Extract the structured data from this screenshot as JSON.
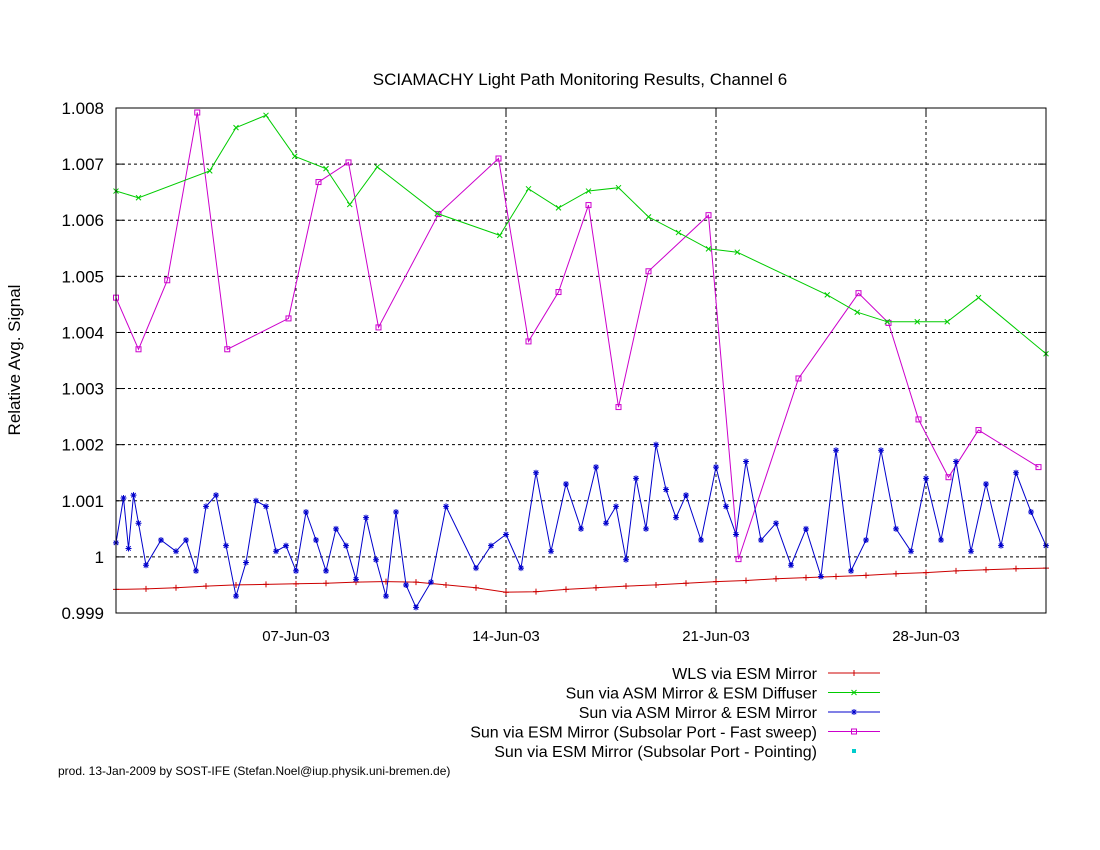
{
  "chart_data": {
    "type": "line",
    "title": "SCIAMACHY Light Path Monitoring Results, Channel 6",
    "ylabel": "Relative Avg. Signal",
    "xlabel": "",
    "xlim": [
      "2003-06-01",
      "2003-07-02"
    ],
    "ylim": [
      0.999,
      1.008
    ],
    "yticks": [
      {
        "value": 0.999,
        "label": "0.999"
      },
      {
        "value": 1.0,
        "label": "1"
      },
      {
        "value": 1.001,
        "label": "1.001"
      },
      {
        "value": 1.002,
        "label": "1.002"
      },
      {
        "value": 1.003,
        "label": "1.003"
      },
      {
        "value": 1.004,
        "label": "1.004"
      },
      {
        "value": 1.005,
        "label": "1.005"
      },
      {
        "value": 1.006,
        "label": "1.006"
      },
      {
        "value": 1.007,
        "label": "1.007"
      },
      {
        "value": 1.008,
        "label": "1.008"
      }
    ],
    "xticks": [
      {
        "value": "2003-06-07",
        "label": "07-Jun-03"
      },
      {
        "value": "2003-06-14",
        "label": "14-Jun-03"
      },
      {
        "value": "2003-06-21",
        "label": "21-Jun-03"
      },
      {
        "value": "2003-06-28",
        "label": "28-Jun-03"
      }
    ],
    "grid": true,
    "legend_position": "bottom-right",
    "series": [
      {
        "name": "WLS via ESM Mirror",
        "color": "#cc0000",
        "marker": "plus",
        "points": [
          [
            "2003-06-01 00:00",
            0.99942
          ],
          [
            "2003-06-02 00:00",
            0.99943
          ],
          [
            "2003-06-03 00:00",
            0.99945
          ],
          [
            "2003-06-04 00:00",
            0.99948
          ],
          [
            "2003-06-05 00:00",
            0.9995
          ],
          [
            "2003-06-06 00:00",
            0.99951
          ],
          [
            "2003-06-07 00:00",
            0.99952
          ],
          [
            "2003-06-08 00:00",
            0.99953
          ],
          [
            "2003-06-09 00:00",
            0.99955
          ],
          [
            "2003-06-10 00:00",
            0.99956
          ],
          [
            "2003-06-11 00:00",
            0.99955
          ],
          [
            "2003-06-12 00:00",
            0.9995
          ],
          [
            "2003-06-13 00:00",
            0.99945
          ],
          [
            "2003-06-14 00:00",
            0.99937
          ],
          [
            "2003-06-15 00:00",
            0.99938
          ],
          [
            "2003-06-16 00:00",
            0.99942
          ],
          [
            "2003-06-17 00:00",
            0.99945
          ],
          [
            "2003-06-18 00:00",
            0.99948
          ],
          [
            "2003-06-19 00:00",
            0.9995
          ],
          [
            "2003-06-20 00:00",
            0.99953
          ],
          [
            "2003-06-21 00:00",
            0.99956
          ],
          [
            "2003-06-22 00:00",
            0.99958
          ],
          [
            "2003-06-23 00:00",
            0.99961
          ],
          [
            "2003-06-24 00:00",
            0.99963
          ],
          [
            "2003-06-25 00:00",
            0.99965
          ],
          [
            "2003-06-26 00:00",
            0.99967
          ],
          [
            "2003-06-27 00:00",
            0.9997
          ],
          [
            "2003-06-28 00:00",
            0.99972
          ],
          [
            "2003-06-29 00:00",
            0.99975
          ],
          [
            "2003-06-30 00:00",
            0.99977
          ],
          [
            "2003-07-01 00:00",
            0.99979
          ],
          [
            "2003-07-02 00:00",
            0.9998
          ]
        ]
      },
      {
        "name": "Sun via ASM Mirror & ESM Diffuser",
        "color": "#00cc00",
        "marker": "cross",
        "points": [
          [
            "2003-06-01 00:00",
            1.00652
          ],
          [
            "2003-06-01 18:00",
            1.0064
          ],
          [
            "2003-06-04 03:00",
            1.00688
          ],
          [
            "2003-06-05 00:00",
            1.00765
          ],
          [
            "2003-06-06 00:00",
            1.00787
          ],
          [
            "2003-06-06 23:00",
            1.00714
          ],
          [
            "2003-06-08 00:00",
            1.00692
          ],
          [
            "2003-06-08 19:00",
            1.00628
          ],
          [
            "2003-06-09 17:00",
            1.00695
          ],
          [
            "2003-06-11 17:00",
            1.00612
          ],
          [
            "2003-06-13 19:00",
            1.00573
          ],
          [
            "2003-06-14 18:00",
            1.00656
          ],
          [
            "2003-06-15 18:00",
            1.00622
          ],
          [
            "2003-06-16 18:00",
            1.00652
          ],
          [
            "2003-06-17 18:00",
            1.00658
          ],
          [
            "2003-06-18 18:00",
            1.00606
          ],
          [
            "2003-06-19 18:00",
            1.00578
          ],
          [
            "2003-06-20 18:00",
            1.00549
          ],
          [
            "2003-06-21 17:00",
            1.00543
          ],
          [
            "2003-06-24 17:00",
            1.00467
          ],
          [
            "2003-06-25 17:00",
            1.00436
          ],
          [
            "2003-06-26 17:00",
            1.00419
          ],
          [
            "2003-06-27 17:00",
            1.00419
          ],
          [
            "2003-06-28 17:00",
            1.00419
          ],
          [
            "2003-06-29 18:00",
            1.00462
          ],
          [
            "2003-07-02 00:00",
            1.00362
          ]
        ]
      },
      {
        "name": "Sun via ASM Mirror & ESM Mirror",
        "color": "#0000cc",
        "marker": "star",
        "points": [
          [
            "2003-06-01 00:00",
            1.00025
          ],
          [
            "2003-06-01 06:00",
            1.00105
          ],
          [
            "2003-06-01 10:00",
            1.00015
          ],
          [
            "2003-06-01 14:00",
            1.0011
          ],
          [
            "2003-06-01 18:00",
            1.0006
          ],
          [
            "2003-06-02 00:00",
            0.99985
          ],
          [
            "2003-06-02 12:00",
            1.0003
          ],
          [
            "2003-06-03 00:00",
            1.0001
          ],
          [
            "2003-06-03 08:00",
            1.0003
          ],
          [
            "2003-06-03 16:00",
            0.99975
          ],
          [
            "2003-06-04 00:00",
            1.0009
          ],
          [
            "2003-06-04 08:00",
            1.0011
          ],
          [
            "2003-06-04 16:00",
            1.0002
          ],
          [
            "2003-06-05 00:00",
            0.9993
          ],
          [
            "2003-06-05 08:00",
            0.9999
          ],
          [
            "2003-06-05 16:00",
            1.001
          ],
          [
            "2003-06-06 00:00",
            1.0009
          ],
          [
            "2003-06-06 08:00",
            1.0001
          ],
          [
            "2003-06-06 16:00",
            1.0002
          ],
          [
            "2003-06-07 00:00",
            0.99975
          ],
          [
            "2003-06-07 08:00",
            1.0008
          ],
          [
            "2003-06-07 16:00",
            1.0003
          ],
          [
            "2003-06-08 00:00",
            0.99975
          ],
          [
            "2003-06-08 08:00",
            1.0005
          ],
          [
            "2003-06-08 16:00",
            1.0002
          ],
          [
            "2003-06-09 00:00",
            0.9996
          ],
          [
            "2003-06-09 08:00",
            1.0007
          ],
          [
            "2003-06-09 16:00",
            0.99995
          ],
          [
            "2003-06-10 00:00",
            0.9993
          ],
          [
            "2003-06-10 08:00",
            1.0008
          ],
          [
            "2003-06-10 16:00",
            0.9995
          ],
          [
            "2003-06-11 00:00",
            0.9991
          ],
          [
            "2003-06-11 12:00",
            0.99955
          ],
          [
            "2003-06-12 00:00",
            1.0009
          ],
          [
            "2003-06-13 00:00",
            0.9998
          ],
          [
            "2003-06-13 12:00",
            1.0002
          ],
          [
            "2003-06-14 00:00",
            1.0004
          ],
          [
            "2003-06-14 12:00",
            0.9998
          ],
          [
            "2003-06-15 00:00",
            1.0015
          ],
          [
            "2003-06-15 12:00",
            1.0001
          ],
          [
            "2003-06-16 00:00",
            1.0013
          ],
          [
            "2003-06-16 12:00",
            1.0005
          ],
          [
            "2003-06-17 00:00",
            1.0016
          ],
          [
            "2003-06-17 08:00",
            1.0006
          ],
          [
            "2003-06-17 16:00",
            1.0009
          ],
          [
            "2003-06-18 00:00",
            0.99995
          ],
          [
            "2003-06-18 08:00",
            1.0014
          ],
          [
            "2003-06-18 16:00",
            1.0005
          ],
          [
            "2003-06-19 00:00",
            1.002
          ],
          [
            "2003-06-19 08:00",
            1.0012
          ],
          [
            "2003-06-19 16:00",
            1.0007
          ],
          [
            "2003-06-20 00:00",
            1.0011
          ],
          [
            "2003-06-20 12:00",
            1.0003
          ],
          [
            "2003-06-21 00:00",
            1.0016
          ],
          [
            "2003-06-21 08:00",
            1.0009
          ],
          [
            "2003-06-21 16:00",
            1.0004
          ],
          [
            "2003-06-22 00:00",
            1.0017
          ],
          [
            "2003-06-22 12:00",
            1.0003
          ],
          [
            "2003-06-23 00:00",
            1.0006
          ],
          [
            "2003-06-23 12:00",
            0.99985
          ],
          [
            "2003-06-24 00:00",
            1.0005
          ],
          [
            "2003-06-24 12:00",
            0.99965
          ],
          [
            "2003-06-25 00:00",
            1.0019
          ],
          [
            "2003-06-25 12:00",
            0.99975
          ],
          [
            "2003-06-26 00:00",
            1.0003
          ],
          [
            "2003-06-26 12:00",
            1.0019
          ],
          [
            "2003-06-27 00:00",
            1.0005
          ],
          [
            "2003-06-27 12:00",
            1.0001
          ],
          [
            "2003-06-28 00:00",
            1.0014
          ],
          [
            "2003-06-28 12:00",
            1.0003
          ],
          [
            "2003-06-29 00:00",
            1.0017
          ],
          [
            "2003-06-29 12:00",
            1.0001
          ],
          [
            "2003-06-30 00:00",
            1.0013
          ],
          [
            "2003-06-30 12:00",
            1.0002
          ],
          [
            "2003-07-01 00:00",
            1.0015
          ],
          [
            "2003-07-01 12:00",
            1.0008
          ],
          [
            "2003-07-02 00:00",
            1.0002
          ]
        ]
      },
      {
        "name": "Sun via ESM Mirror (Subsolar Port - Fast sweep)",
        "color": "#cc00cc",
        "marker": "square",
        "points": [
          [
            "2003-06-01 00:00",
            1.00462
          ],
          [
            "2003-06-01 18:00",
            1.0037
          ],
          [
            "2003-06-02 17:00",
            1.00493
          ],
          [
            "2003-06-03 17:00",
            1.00792
          ],
          [
            "2003-06-04 17:00",
            1.0037
          ],
          [
            "2003-06-06 18:00",
            1.00425
          ],
          [
            "2003-06-07 18:00",
            1.00668
          ],
          [
            "2003-06-08 18:00",
            1.00703
          ],
          [
            "2003-06-09 18:00",
            1.00409
          ],
          [
            "2003-06-11 18:00",
            1.00611
          ],
          [
            "2003-06-13 18:00",
            1.0071
          ],
          [
            "2003-06-14 18:00",
            1.00384
          ],
          [
            "2003-06-15 18:00",
            1.00472
          ],
          [
            "2003-06-16 18:00",
            1.00627
          ],
          [
            "2003-06-17 18:00",
            1.00267
          ],
          [
            "2003-06-18 18:00",
            1.00509
          ],
          [
            "2003-06-20 18:00",
            1.00609
          ],
          [
            "2003-06-21 18:00",
            0.99996
          ],
          [
            "2003-06-23 18:00",
            1.00318
          ],
          [
            "2003-06-25 18:00",
            1.0047
          ],
          [
            "2003-06-26 18:00",
            1.00417
          ],
          [
            "2003-06-27 18:00",
            1.00245
          ],
          [
            "2003-06-28 18:00",
            1.00142
          ],
          [
            "2003-06-29 18:00",
            1.00226
          ],
          [
            "2003-07-01 18:00",
            1.0016
          ]
        ]
      },
      {
        "name": "Sun via ESM Mirror (Subsolar Port - Pointing)",
        "color": "#00cccc",
        "marker": "dot",
        "points": []
      }
    ]
  },
  "footer": "prod. 13-Jan-2009 by SOST-IFE (Stefan.Noel@iup.physik.uni-bremen.de)"
}
